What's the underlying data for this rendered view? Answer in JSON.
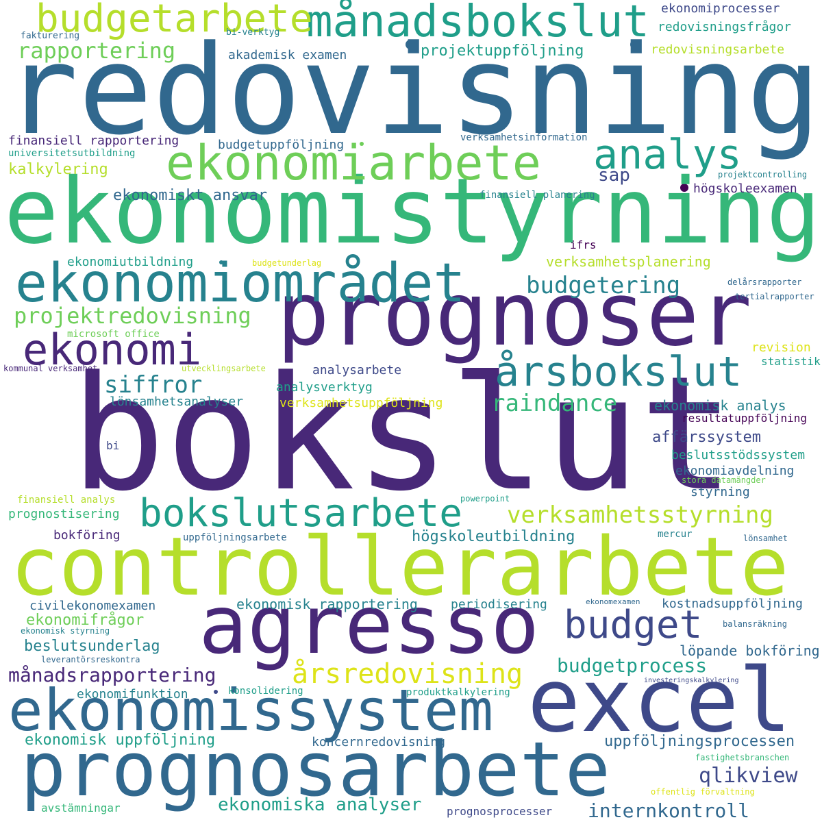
{
  "palette": {
    "p0": "#440154",
    "p1": "#482878",
    "p2": "#3e4989",
    "p3": "#31688e",
    "p4": "#26828e",
    "p5": "#1f9e89",
    "p6": "#35b779",
    "p7": "#6ece58",
    "p8": "#b5de2b",
    "p9": "#dde318"
  },
  "words": [
    {
      "text": "redovisning",
      "color": "p3"
    },
    {
      "text": "ekonomistyrning",
      "color": "p6"
    },
    {
      "text": "bokslut",
      "color": "p1"
    },
    {
      "text": "controllerarbete",
      "color": "p8"
    },
    {
      "text": "prognoser",
      "color": "p1"
    },
    {
      "text": "agresso",
      "color": "p1"
    },
    {
      "text": "excel",
      "color": "p2"
    },
    {
      "text": "prognosarbete",
      "color": "p3"
    },
    {
      "text": "ekonomissystem",
      "color": "p3"
    },
    {
      "text": "ekonomiområdet",
      "color": "p4"
    },
    {
      "text": "ekonomiarbete",
      "color": "p7"
    },
    {
      "text": "månadsbokslut",
      "color": "p5"
    },
    {
      "text": "budgetarbete",
      "color": "p8"
    },
    {
      "text": "bokslutsarbete",
      "color": "p5"
    },
    {
      "text": "analys",
      "color": "p5"
    },
    {
      "text": "ekonomi",
      "color": "p1"
    },
    {
      "text": "årsbokslut",
      "color": "p4"
    },
    {
      "text": "budget",
      "color": "p2"
    },
    {
      "text": "årsredovisning",
      "color": "p9"
    },
    {
      "text": "verksamhetsstyrning",
      "color": "p8"
    },
    {
      "text": "budgetering",
      "color": "p4"
    },
    {
      "text": "projektredovisning",
      "color": "p7"
    },
    {
      "text": "rapportering",
      "color": "p7"
    },
    {
      "text": "siffror",
      "color": "p4"
    },
    {
      "text": "raindance",
      "color": "p6"
    },
    {
      "text": "qlikview",
      "color": "p2"
    },
    {
      "text": "budgetprocess",
      "color": "p5"
    },
    {
      "text": "månadsrapportering",
      "color": "p1"
    },
    {
      "text": "internkontroll",
      "color": "p3"
    },
    {
      "text": "ekonomiska analyser",
      "color": "p5"
    },
    {
      "text": "uppföljningsprocessen",
      "color": "p3"
    },
    {
      "text": "ekonomisk uppföljning",
      "color": "p5"
    },
    {
      "text": "projektuppföljning",
      "color": "p5"
    },
    {
      "text": "affärssystem",
      "color": "p2"
    },
    {
      "text": "sap",
      "color": "p2"
    },
    {
      "text": "verksamhetsplanering",
      "color": "p8"
    },
    {
      "text": "ekonomiskt ansvar",
      "color": "p3"
    },
    {
      "text": "beslutsunderlag",
      "color": "p4"
    },
    {
      "text": "ekonomifrågor",
      "color": "p7"
    },
    {
      "text": "kalkylering",
      "color": "p8"
    },
    {
      "text": "högskoleutbildning",
      "color": "p4"
    },
    {
      "text": "ekonomisk rapportering",
      "color": "p4"
    },
    {
      "text": "ekonomisk analys",
      "color": "p4"
    },
    {
      "text": "beslutsstödssystem",
      "color": "p5"
    },
    {
      "text": "löpande bokföring",
      "color": "p3"
    },
    {
      "text": "kostnadsuppföljning",
      "color": "p3"
    },
    {
      "text": "koncernredovisning",
      "color": "p3"
    },
    {
      "text": "finansiell rapportering",
      "color": "p1"
    },
    {
      "text": "civilekonomexamen",
      "color": "p3"
    },
    {
      "text": "redovisningsfrågor",
      "color": "p5"
    },
    {
      "text": "verksamhetsuppföljning",
      "color": "p9"
    },
    {
      "text": "lönsamhetsanalyser",
      "color": "p4"
    },
    {
      "text": "budgetuppföljning",
      "color": "p3"
    },
    {
      "text": "högskoleexamen",
      "color": "p1"
    },
    {
      "text": "ekonomiutbildning",
      "color": "p5"
    },
    {
      "text": "ekonomiprocesser",
      "color": "p2"
    },
    {
      "text": "redovisningsarbete",
      "color": "p8"
    },
    {
      "text": "bokföring",
      "color": "p1"
    },
    {
      "text": "prognostisering",
      "color": "p6"
    },
    {
      "text": "styrning",
      "color": "p3"
    },
    {
      "text": "ekonomiavdelning",
      "color": "p3"
    },
    {
      "text": "periodisering",
      "color": "p4"
    },
    {
      "text": "analysarbete",
      "color": "p2"
    },
    {
      "text": "akademisk examen",
      "color": "p3"
    },
    {
      "text": "ekonomifunktion",
      "color": "p4"
    },
    {
      "text": "analysverktyg",
      "color": "p5"
    },
    {
      "text": "revision",
      "color": "p9"
    },
    {
      "text": "statistik",
      "color": "p5"
    },
    {
      "text": "resultatuppföljning",
      "color": "p0"
    },
    {
      "text": "avstämningar",
      "color": "p6"
    },
    {
      "text": "prognosprocesser",
      "color": "p2"
    },
    {
      "text": "universitetsutbildning",
      "color": "p5"
    },
    {
      "text": "finansiell planering",
      "color": "p4"
    },
    {
      "text": "konsolidering",
      "color": "p5"
    },
    {
      "text": "produktkalkylering",
      "color": "p5"
    },
    {
      "text": "uppföljningsarbete",
      "color": "p3"
    },
    {
      "text": "bi",
      "color": "p2"
    },
    {
      "text": "ifrs",
      "color": "p0"
    },
    {
      "text": "mercur",
      "color": "p4"
    },
    {
      "text": "verksamhetsinformation",
      "color": "p3"
    },
    {
      "text": "fakturering",
      "color": "p3"
    },
    {
      "text": "bi-verktyg",
      "color": "p4"
    },
    {
      "text": "finansiell analys",
      "color": "p8"
    },
    {
      "text": "microsoft office",
      "color": "p7"
    },
    {
      "text": "utvecklingsarbete",
      "color": "p8"
    },
    {
      "text": "kommunal verksamhet",
      "color": "p1"
    },
    {
      "text": "powerpoint",
      "color": "p5"
    },
    {
      "text": "budgetunderlag",
      "color": "p9"
    },
    {
      "text": "delårsrapporter",
      "color": "p3"
    },
    {
      "text": "tertialrapporter",
      "color": "p3"
    },
    {
      "text": "projektcontrolling",
      "color": "p4"
    },
    {
      "text": "stora datamängder",
      "color": "p7"
    },
    {
      "text": "lönsamhet",
      "color": "p3"
    },
    {
      "text": "ekonomexamen",
      "color": "p3"
    },
    {
      "text": "ekonomisk styrning",
      "color": "p4"
    },
    {
      "text": "balansräkning",
      "color": "p3"
    },
    {
      "text": "leverantörsreskontra",
      "color": "p3"
    },
    {
      "text": "investeringskalkylering",
      "color": "p2"
    },
    {
      "text": "fastighetsbranschen",
      "color": "p6"
    },
    {
      "text": "offentlig förvaltning",
      "color": "p9"
    }
  ]
}
